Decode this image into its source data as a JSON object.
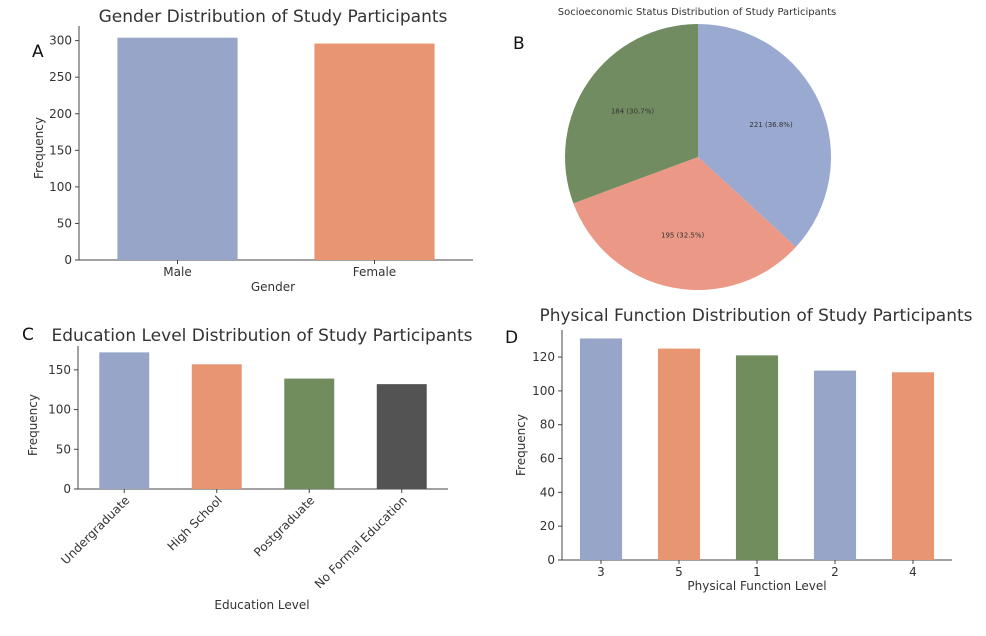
{
  "panels": [
    {
      "letter": "A"
    },
    {
      "letter": "B"
    },
    {
      "letter": "C"
    },
    {
      "letter": "D"
    }
  ],
  "chart_data": [
    {
      "type": "bar",
      "title": "Gender Distribution of Study Participants",
      "xlabel": "Gender",
      "ylabel": "Frequency",
      "categories": [
        "Male",
        "Female"
      ],
      "values": [
        304,
        296
      ],
      "ylim": [
        0,
        320
      ],
      "yticks": [
        0,
        50,
        100,
        150,
        200,
        250,
        300
      ],
      "colors": [
        "#96a5c8",
        "#e89672"
      ],
      "grid": false
    },
    {
      "type": "pie",
      "title": "Socioeconomic Status Distribution of Study Participants",
      "values": [
        221,
        195,
        184
      ],
      "labels": [
        "221 (36.8%)",
        "195 (32.5%)",
        "184 (30.7%)"
      ],
      "colors": [
        "#9aa9cf",
        "#eb9886",
        "#728c62"
      ],
      "start_angle_deg": 90,
      "direction": "clockwise"
    },
    {
      "type": "bar",
      "title": "Education Level Distribution of Study Participants",
      "xlabel": "Education Level",
      "ylabel": "Frequency",
      "categories": [
        "Undergraduate",
        "High School",
        "Postgraduate",
        "No Formal Education"
      ],
      "values": [
        172,
        157,
        139,
        132
      ],
      "ylim": [
        0,
        180
      ],
      "yticks": [
        0,
        50,
        100,
        150
      ],
      "colors": [
        "#96a5c8",
        "#e89672",
        "#718c5d",
        "#535353"
      ],
      "grid": false
    },
    {
      "type": "bar",
      "title": "Physical Function Distribution of Study Participants",
      "xlabel": "Physical Function Level",
      "ylabel": "Frequency",
      "categories": [
        "3",
        "5",
        "1",
        "2",
        "4"
      ],
      "values": [
        131,
        125,
        121,
        112,
        111
      ],
      "ylim": [
        0,
        136
      ],
      "yticks": [
        0,
        20,
        40,
        60,
        80,
        100,
        120
      ],
      "colors": [
        "#96a5c8",
        "#e89672",
        "#718c5d",
        "#96a5c8",
        "#e89672"
      ],
      "grid": false
    }
  ]
}
